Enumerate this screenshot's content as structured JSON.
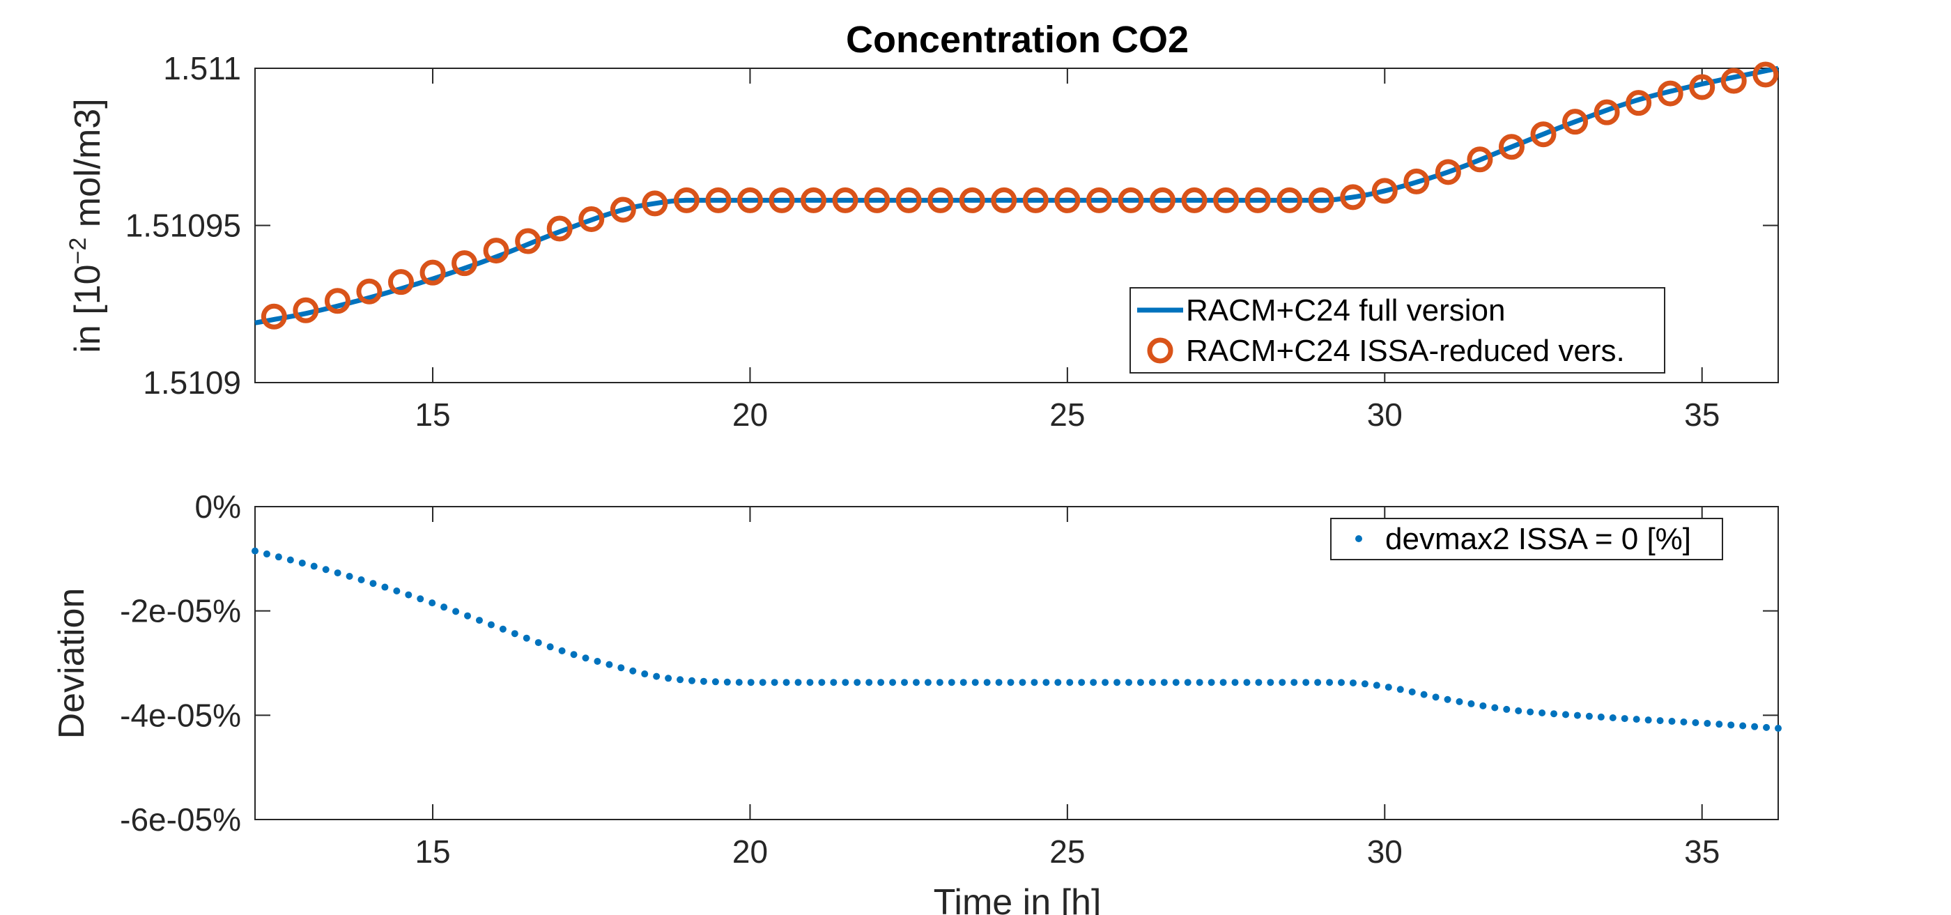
{
  "colors": {
    "full_line": "#0072BD",
    "reduced_markers": "#D95319",
    "deviation_points": "#0072BD",
    "axes": "#262626",
    "legend_border": "#262626"
  },
  "chart_data": [
    {
      "type": "line",
      "title": "Concentration CO2",
      "ylabel_prefix": "in [10",
      "ylabel_exp": "−2",
      "ylabel_suffix": " mol/m3]",
      "xlim": [
        12.2,
        36.2
      ],
      "ylim": [
        1.5109,
        1.511
      ],
      "xticks": [
        15,
        20,
        25,
        30,
        35
      ],
      "xtick_labels": [
        "15",
        "20",
        "25",
        "30",
        "35"
      ],
      "yticks": [
        1.5109,
        1.51095,
        1.511
      ],
      "ytick_labels": [
        "1.5109",
        "1.51095",
        "1.511"
      ],
      "legend_position": "bottom-right",
      "series": [
        {
          "name": "RACM+C24 full version",
          "style": "line",
          "x": [
            12.2,
            13,
            14,
            15,
            16,
            17,
            18,
            18.5,
            19,
            20,
            25,
            29,
            29.5,
            30,
            31,
            32,
            33,
            34,
            35,
            36.2
          ],
          "y": [
            1.510919,
            1.510922,
            1.510927,
            1.510933,
            1.51094,
            1.510948,
            1.510955,
            1.510957,
            1.510958,
            1.510958,
            1.510958,
            1.510958,
            1.510959,
            1.510961,
            1.510967,
            1.510975,
            1.510983,
            1.51099,
            1.510995,
            1.511
          ]
        },
        {
          "name": "RACM+C24 ISSA-reduced vers.",
          "style": "markers",
          "x": [
            12.5,
            13,
            13.5,
            14,
            14.5,
            15,
            15.5,
            16,
            16.5,
            17,
            17.5,
            18,
            18.5,
            19,
            19.5,
            20,
            20.5,
            21,
            21.5,
            22,
            22.5,
            23,
            23.5,
            24,
            24.5,
            25,
            25.5,
            26,
            26.5,
            27,
            27.5,
            28,
            28.5,
            29,
            29.5,
            30,
            30.5,
            31,
            31.5,
            32,
            32.5,
            33,
            33.5,
            34,
            34.5,
            35,
            35.5,
            36
          ],
          "y": [
            1.510921,
            1.510923,
            1.510926,
            1.510929,
            1.510932,
            1.510935,
            1.510938,
            1.510942,
            1.510945,
            1.510949,
            1.510952,
            1.510955,
            1.510957,
            1.510958,
            1.510958,
            1.510958,
            1.510958,
            1.510958,
            1.510958,
            1.510958,
            1.510958,
            1.510958,
            1.510958,
            1.510958,
            1.510958,
            1.510958,
            1.510958,
            1.510958,
            1.510958,
            1.510958,
            1.510958,
            1.510958,
            1.510958,
            1.510958,
            1.510959,
            1.510961,
            1.510964,
            1.510967,
            1.510971,
            1.510975,
            1.510979,
            1.510983,
            1.510986,
            1.510989,
            1.510992,
            1.510994,
            1.510996,
            1.510998
          ]
        }
      ]
    },
    {
      "type": "scatter",
      "xlabel": "Time in [h]",
      "ylabel": "Deviation",
      "xlim": [
        12.2,
        36.2
      ],
      "ylim": [
        -6e-05,
        0
      ],
      "xticks": [
        15,
        20,
        25,
        30,
        35
      ],
      "xtick_labels": [
        "15",
        "20",
        "25",
        "30",
        "35"
      ],
      "yticks": [
        -6e-05,
        -4e-05,
        -2e-05,
        0
      ],
      "ytick_labels": [
        "-6e-05%",
        "-4e-05%",
        "-2e-05%",
        "0%"
      ],
      "legend_position": "top-right",
      "series": [
        {
          "name": "devmax2 ISSA = 0 [%]",
          "style": "dots",
          "x": [
            12.2,
            13,
            14,
            15,
            16,
            17,
            18,
            18.5,
            19,
            19.5,
            20,
            25,
            29,
            29.5,
            30,
            31,
            32,
            33,
            34,
            35,
            36.2
          ],
          "y": [
            -8.5e-06,
            -1.1e-05,
            -1.45e-05,
            -1.85e-05,
            -2.3e-05,
            -2.75e-05,
            -3.1e-05,
            -3.25e-05,
            -3.33e-05,
            -3.36e-05,
            -3.37e-05,
            -3.37e-05,
            -3.37e-05,
            -3.38e-05,
            -3.45e-05,
            -3.7e-05,
            -3.9e-05,
            -4e-05,
            -4.08e-05,
            -4.15e-05,
            -4.25e-05
          ]
        }
      ]
    }
  ]
}
